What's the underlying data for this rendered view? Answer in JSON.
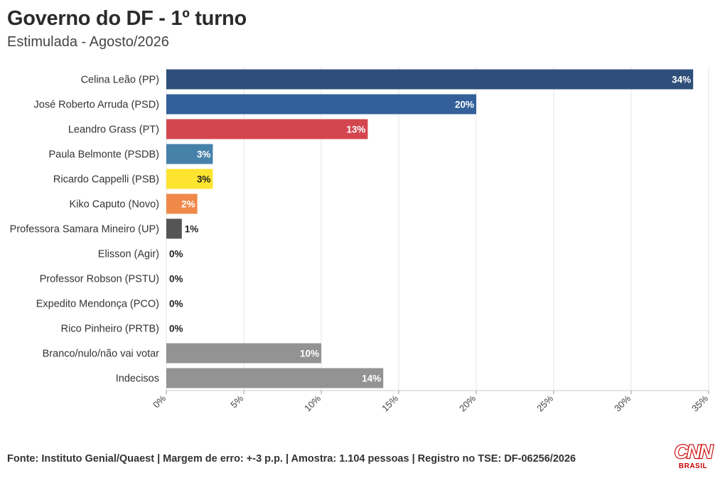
{
  "header": {
    "title": "Governo do DF - 1º turno",
    "subtitle": "Estimulada - Agosto/2026"
  },
  "footer": {
    "source": "Fonte: Instituto Genial/Quaest | Margem de erro: +-3 p.p. | Amostra: 1.104 pessoas | Registro no TSE: DF-06256/2026"
  },
  "logo": {
    "mark": "CNN",
    "sub": "BRASIL",
    "color": "#cc0000"
  },
  "chart_data": {
    "type": "bar",
    "orientation": "horizontal",
    "title": "Governo do DF - 1º turno",
    "subtitle": "Estimulada - Agosto/2026",
    "categories": [
      "Celina Leão (PP)",
      "José Roberto Arruda (PSD)",
      "Leandro Grass (PT)",
      "Paula Belmonte (PSDB)",
      "Ricardo Cappelli (PSB)",
      "Kiko Caputo (Novo)",
      "Professora Samara Mineiro (UP)",
      "Elisson (Agir)",
      "Professor Robson (PSTU)",
      "Expedito Mendonça (PCO)",
      "Rico Pinheiro (PRTB)",
      "Branco/nulo/não vai votar",
      "Indecisos"
    ],
    "values": [
      34,
      20,
      13,
      3,
      3,
      2,
      1,
      0,
      0,
      0,
      0,
      10,
      14
    ],
    "value_labels": [
      "34%",
      "20%",
      "13%",
      "3%",
      "3%",
      "2%",
      "1%",
      "0%",
      "0%",
      "0%",
      "0%",
      "10%",
      "14%"
    ],
    "colors": [
      "#2e4f7a",
      "#33609a",
      "#d4464e",
      "#4681aa",
      "#fde52f",
      "#f0884a",
      "#555555",
      "#999999",
      "#999999",
      "#999999",
      "#999999",
      "#939393",
      "#939393"
    ],
    "label_colors": [
      "#ffffff",
      "#ffffff",
      "#ffffff",
      "#ffffff",
      "#222222",
      "#ffffff",
      "#222222",
      "#222222",
      "#222222",
      "#222222",
      "#222222",
      "#ffffff",
      "#ffffff"
    ],
    "xlim": [
      0,
      35
    ],
    "xticks": [
      0,
      5,
      10,
      15,
      20,
      25,
      30,
      35
    ],
    "xtick_labels": [
      "0%",
      "5%",
      "10%",
      "15%",
      "20%",
      "25%",
      "30%",
      "35%"
    ],
    "xlabel": "",
    "ylabel": "",
    "grid": true,
    "legend": "none"
  }
}
